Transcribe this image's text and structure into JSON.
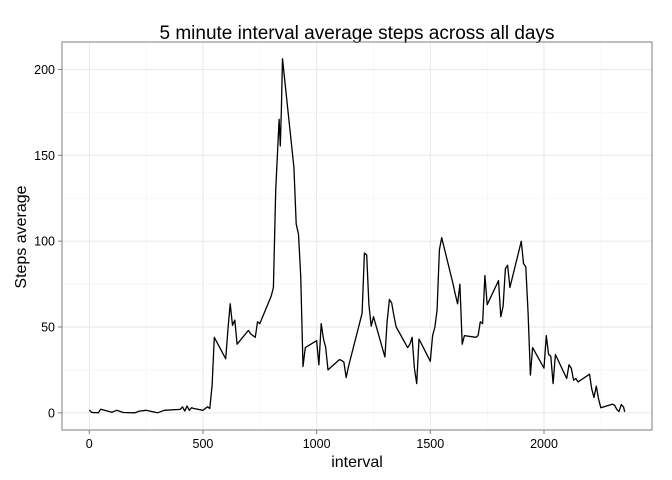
{
  "chart_data": {
    "type": "line",
    "title": "5 minute interval  average steps across all days",
    "xlabel": "interval",
    "ylabel": "Steps average",
    "xlim": [
      -120,
      2475
    ],
    "ylim": [
      -10,
      216
    ],
    "x_ticks": [
      0,
      500,
      1000,
      1500,
      2000
    ],
    "y_ticks": [
      0,
      50,
      100,
      150,
      200
    ],
    "x_minor_ticks": [
      250,
      750,
      1250,
      1750,
      2250
    ],
    "y_minor_ticks": [
      25,
      75,
      125,
      175
    ],
    "grid": true,
    "series": [
      {
        "x": [
          0,
          10,
          20,
          30,
          40,
          50,
          100,
          120,
          150,
          200,
          220,
          250,
          300,
          330,
          400,
          410,
          420,
          430,
          440,
          450,
          460,
          500,
          510,
          520,
          530,
          540,
          550,
          600,
          610,
          620,
          630,
          640,
          650,
          700,
          710,
          720,
          730,
          740,
          750,
          800,
          810,
          820,
          830,
          835,
          840,
          845,
          850,
          900,
          910,
          920,
          930,
          940,
          950,
          1000,
          1010,
          1020,
          1030,
          1040,
          1050,
          1100,
          1110,
          1120,
          1130,
          1140,
          1150,
          1200,
          1210,
          1220,
          1230,
          1240,
          1250,
          1300,
          1310,
          1320,
          1330,
          1340,
          1350,
          1400,
          1410,
          1420,
          1430,
          1440,
          1450,
          1500,
          1510,
          1520,
          1530,
          1540,
          1550,
          1600,
          1610,
          1620,
          1630,
          1640,
          1650,
          1700,
          1710,
          1720,
          1730,
          1740,
          1750,
          1800,
          1810,
          1820,
          1830,
          1840,
          1850,
          1900,
          1910,
          1920,
          1930,
          1940,
          1950,
          2000,
          2010,
          2020,
          2030,
          2040,
          2050,
          2100,
          2110,
          2120,
          2130,
          2140,
          2150,
          2200,
          2210,
          2220,
          2230,
          2240,
          2250,
          2300,
          2310,
          2320,
          2330,
          2340,
          2350,
          2355
        ],
        "values": [
          1.7,
          0.3,
          0.1,
          0.2,
          0.0,
          2.1,
          0.3,
          1.5,
          0.2,
          0.0,
          1.0,
          1.5,
          0.0,
          1.5,
          2.0,
          3.5,
          1.0,
          4.0,
          1.5,
          3.0,
          2.5,
          1.5,
          2.5,
          3.5,
          2.5,
          16.0,
          44.0,
          31.5,
          49.0,
          63.5,
          51.0,
          54.0,
          40.0,
          48.0,
          46.0,
          45.0,
          44.0,
          53.0,
          52.0,
          68.0,
          73.0,
          129.4,
          157.5,
          171.0,
          155.4,
          177.3,
          206.2,
          143.0,
          110.0,
          104.0,
          80.0,
          27.0,
          38.0,
          42.0,
          28.0,
          52.0,
          43.0,
          38.0,
          25.0,
          31.0,
          30.5,
          29.5,
          20.5,
          27.0,
          32.0,
          58.0,
          93.0,
          92.0,
          63.0,
          50.5,
          56.0,
          32.5,
          53.0,
          66.0,
          64.0,
          56.5,
          50.0,
          38.0,
          40.0,
          44.0,
          26.0,
          17.0,
          43.0,
          30.0,
          45.0,
          50.0,
          60.0,
          95.0,
          102.0,
          75.0,
          69.0,
          63.5,
          75.0,
          40.0,
          45.0,
          44.0,
          45.0,
          53.0,
          52.0,
          80.0,
          63.0,
          77.0,
          56.0,
          62.0,
          84.0,
          86.0,
          73.0,
          100.0,
          87.0,
          85.0,
          58.0,
          22.0,
          38.0,
          26.0,
          45.0,
          34.0,
          33.0,
          17.0,
          34.0,
          20.0,
          28.0,
          26.0,
          19.0,
          20.0,
          18.0,
          22.5,
          14.0,
          9.0,
          15.5,
          8.0,
          3.0,
          5.0,
          4.5,
          2.0,
          0.7,
          4.8,
          3.3,
          0.6
        ],
        "color": "#000000"
      }
    ]
  }
}
